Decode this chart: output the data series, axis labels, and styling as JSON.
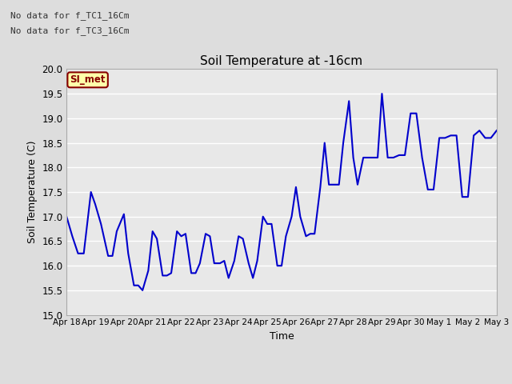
{
  "title": "Soil Temperature at -16cm",
  "xlabel": "Time",
  "ylabel": "Soil Temperature (C)",
  "ylim": [
    15.0,
    20.0
  ],
  "yticks": [
    15.0,
    15.5,
    16.0,
    16.5,
    17.0,
    17.5,
    18.0,
    18.5,
    19.0,
    19.5,
    20.0
  ],
  "line_color": "#0000cc",
  "line_width": 1.5,
  "bg_color": "#dddddd",
  "plot_bg_color": "#e8e8e8",
  "grid_color": "#ffffff",
  "annotations": [
    "No data for f_TC1_16Cm",
    "No data for f_TC3_16Cm"
  ],
  "legend_color": "#0000cc",
  "box_label": "SI_met",
  "box_facecolor": "#ffffaa",
  "box_edgecolor": "#880000",
  "box_textcolor": "#880000",
  "x_data": [
    0.0,
    0.2,
    0.4,
    0.6,
    0.85,
    1.0,
    1.2,
    1.45,
    1.6,
    1.75,
    2.0,
    2.15,
    2.35,
    2.5,
    2.65,
    2.85,
    3.0,
    3.15,
    3.35,
    3.5,
    3.65,
    3.85,
    4.0,
    4.15,
    4.35,
    4.5,
    4.65,
    4.85,
    5.0,
    5.15,
    5.35,
    5.5,
    5.65,
    5.85,
    6.0,
    6.15,
    6.35,
    6.5,
    6.65,
    6.85,
    7.0,
    7.15,
    7.35,
    7.5,
    7.65,
    7.85,
    8.0,
    8.15,
    8.35,
    8.5,
    8.65,
    8.85,
    9.0,
    9.15,
    9.35,
    9.5,
    9.65,
    9.85,
    10.0,
    10.15,
    10.35,
    10.5,
    10.65,
    10.85,
    11.0,
    11.2,
    11.4,
    11.6,
    11.8,
    12.0,
    12.2,
    12.4,
    12.6,
    12.8,
    13.0,
    13.2,
    13.4,
    13.6,
    13.8,
    14.0,
    14.2,
    14.4,
    14.6,
    14.8,
    15.0
  ],
  "y_data": [
    17.0,
    16.6,
    16.25,
    16.25,
    17.5,
    17.25,
    16.85,
    16.2,
    16.2,
    16.7,
    17.05,
    16.25,
    15.6,
    15.6,
    15.5,
    15.9,
    16.7,
    16.55,
    15.8,
    15.8,
    15.85,
    16.7,
    16.6,
    16.65,
    15.85,
    15.85,
    16.05,
    16.65,
    16.6,
    16.05,
    16.05,
    16.1,
    15.75,
    16.1,
    16.6,
    16.55,
    16.05,
    15.75,
    16.1,
    17.0,
    16.85,
    16.85,
    16.0,
    16.0,
    16.6,
    17.0,
    17.6,
    17.0,
    16.6,
    16.65,
    16.65,
    17.6,
    18.5,
    17.65,
    17.65,
    17.65,
    18.5,
    19.35,
    18.2,
    17.65,
    18.2,
    18.2,
    18.2,
    18.2,
    19.5,
    18.2,
    18.2,
    18.25,
    18.25,
    19.1,
    19.1,
    18.2,
    17.55,
    17.55,
    18.6,
    18.6,
    18.65,
    18.65,
    17.4,
    17.4,
    18.65,
    18.75,
    18.6,
    18.6,
    18.75
  ],
  "xtick_positions": [
    0,
    1,
    2,
    3,
    4,
    5,
    6,
    7,
    8,
    9,
    10,
    11,
    12,
    13,
    14,
    15
  ],
  "xtick_labels": [
    "Apr 18",
    "Apr 19",
    "Apr 20",
    "Apr 21",
    "Apr 22",
    "Apr 23",
    "Apr 24",
    "Apr 25",
    "Apr 26",
    "Apr 27",
    "Apr 28",
    "Apr 29",
    "Apr 30",
    "May 1",
    "May 2",
    "May 3"
  ]
}
